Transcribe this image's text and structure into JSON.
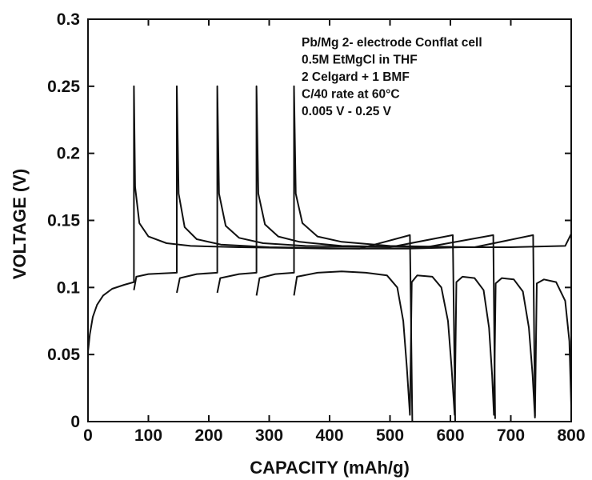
{
  "chart_data": {
    "type": "line",
    "xlabel": "CAPACITY (mAh/g)",
    "ylabel": "VOLTAGE (V)",
    "xlim": [
      0,
      800
    ],
    "ylim": [
      0,
      0.3
    ],
    "xticks": [
      "0",
      "100",
      "200",
      "300",
      "400",
      "500",
      "600",
      "700",
      "800"
    ],
    "yticks": [
      "0",
      "0.05",
      "0.1",
      "0.15",
      "0.2",
      "0.25",
      "0.3"
    ],
    "grid": false,
    "legend": "none",
    "annotation_lines": [
      "Pb/Mg 2- electrode Conflat cell",
      "0.5M EtMgCl in THF",
      "2 Celgard + 1 BMF",
      "C/40 rate at 60°C",
      "0.005 V - 0.25 V"
    ],
    "series": [
      {
        "points": [
          [
            0,
            0.052
          ],
          [
            3,
            0.065
          ],
          [
            8,
            0.078
          ],
          [
            15,
            0.087
          ],
          [
            25,
            0.094
          ],
          [
            40,
            0.099
          ],
          [
            60,
            0.102
          ],
          [
            76,
            0.104
          ],
          [
            76,
            0.25
          ],
          [
            78,
            0.175
          ],
          [
            85,
            0.148
          ],
          [
            100,
            0.138
          ],
          [
            130,
            0.133
          ],
          [
            170,
            0.131
          ],
          [
            250,
            0.13
          ],
          [
            400,
            0.129
          ],
          [
            530,
            0.129
          ],
          [
            620,
            0.13
          ],
          [
            700,
            0.13
          ],
          [
            790,
            0.131
          ],
          [
            800,
            0.14
          ]
        ]
      },
      {
        "points": [
          [
            76,
            0.098
          ],
          [
            80,
            0.108
          ],
          [
            100,
            0.11
          ],
          [
            147,
            0.111
          ],
          [
            147,
            0.25
          ],
          [
            150,
            0.17
          ],
          [
            160,
            0.145
          ],
          [
            180,
            0.136
          ],
          [
            220,
            0.132
          ],
          [
            300,
            0.13
          ],
          [
            450,
            0.129
          ],
          [
            533,
            0.139
          ],
          [
            537,
            0.0
          ]
        ]
      },
      {
        "points": [
          [
            147,
            0.096
          ],
          [
            152,
            0.107
          ],
          [
            180,
            0.11
          ],
          [
            214,
            0.111
          ],
          [
            214,
            0.25
          ],
          [
            217,
            0.17
          ],
          [
            228,
            0.146
          ],
          [
            250,
            0.137
          ],
          [
            290,
            0.133
          ],
          [
            360,
            0.131
          ],
          [
            500,
            0.13
          ],
          [
            604,
            0.139
          ],
          [
            608,
            0.0
          ]
        ]
      },
      {
        "points": [
          [
            214,
            0.096
          ],
          [
            219,
            0.107
          ],
          [
            250,
            0.11
          ],
          [
            279,
            0.111
          ],
          [
            279,
            0.25
          ],
          [
            282,
            0.17
          ],
          [
            293,
            0.147
          ],
          [
            315,
            0.138
          ],
          [
            350,
            0.134
          ],
          [
            420,
            0.131
          ],
          [
            560,
            0.13
          ],
          [
            671,
            0.139
          ],
          [
            674,
            0.002
          ]
        ]
      },
      {
        "points": [
          [
            279,
            0.094
          ],
          [
            284,
            0.107
          ],
          [
            310,
            0.11
          ],
          [
            341,
            0.111
          ],
          [
            341,
            0.25
          ],
          [
            344,
            0.17
          ],
          [
            355,
            0.148
          ],
          [
            380,
            0.138
          ],
          [
            420,
            0.134
          ],
          [
            500,
            0.131
          ],
          [
            640,
            0.13
          ],
          [
            737,
            0.139
          ],
          [
            740,
            0.004
          ]
        ]
      },
      {
        "points": [
          [
            341,
            0.094
          ],
          [
            346,
            0.108
          ],
          [
            380,
            0.111
          ],
          [
            420,
            0.112
          ],
          [
            460,
            0.111
          ],
          [
            495,
            0.109
          ],
          [
            512,
            0.1
          ],
          [
            522,
            0.075
          ],
          [
            528,
            0.04
          ],
          [
            533,
            0.005
          ],
          [
            536,
            0.104
          ],
          [
            545,
            0.109
          ],
          [
            570,
            0.108
          ],
          [
            585,
            0.1
          ],
          [
            596,
            0.075
          ],
          [
            602,
            0.04
          ],
          [
            607,
            0.005
          ],
          [
            610,
            0.104
          ],
          [
            620,
            0.108
          ],
          [
            640,
            0.107
          ],
          [
            655,
            0.098
          ],
          [
            664,
            0.07
          ],
          [
            669,
            0.035
          ],
          [
            672,
            0.005
          ],
          [
            675,
            0.103
          ],
          [
            685,
            0.107
          ],
          [
            705,
            0.106
          ],
          [
            720,
            0.097
          ],
          [
            730,
            0.07
          ],
          [
            736,
            0.035
          ],
          [
            740,
            0.003
          ],
          [
            743,
            0.103
          ],
          [
            755,
            0.106
          ],
          [
            775,
            0.104
          ],
          [
            790,
            0.09
          ],
          [
            797,
            0.06
          ],
          [
            800,
            0.012
          ]
        ]
      }
    ]
  }
}
